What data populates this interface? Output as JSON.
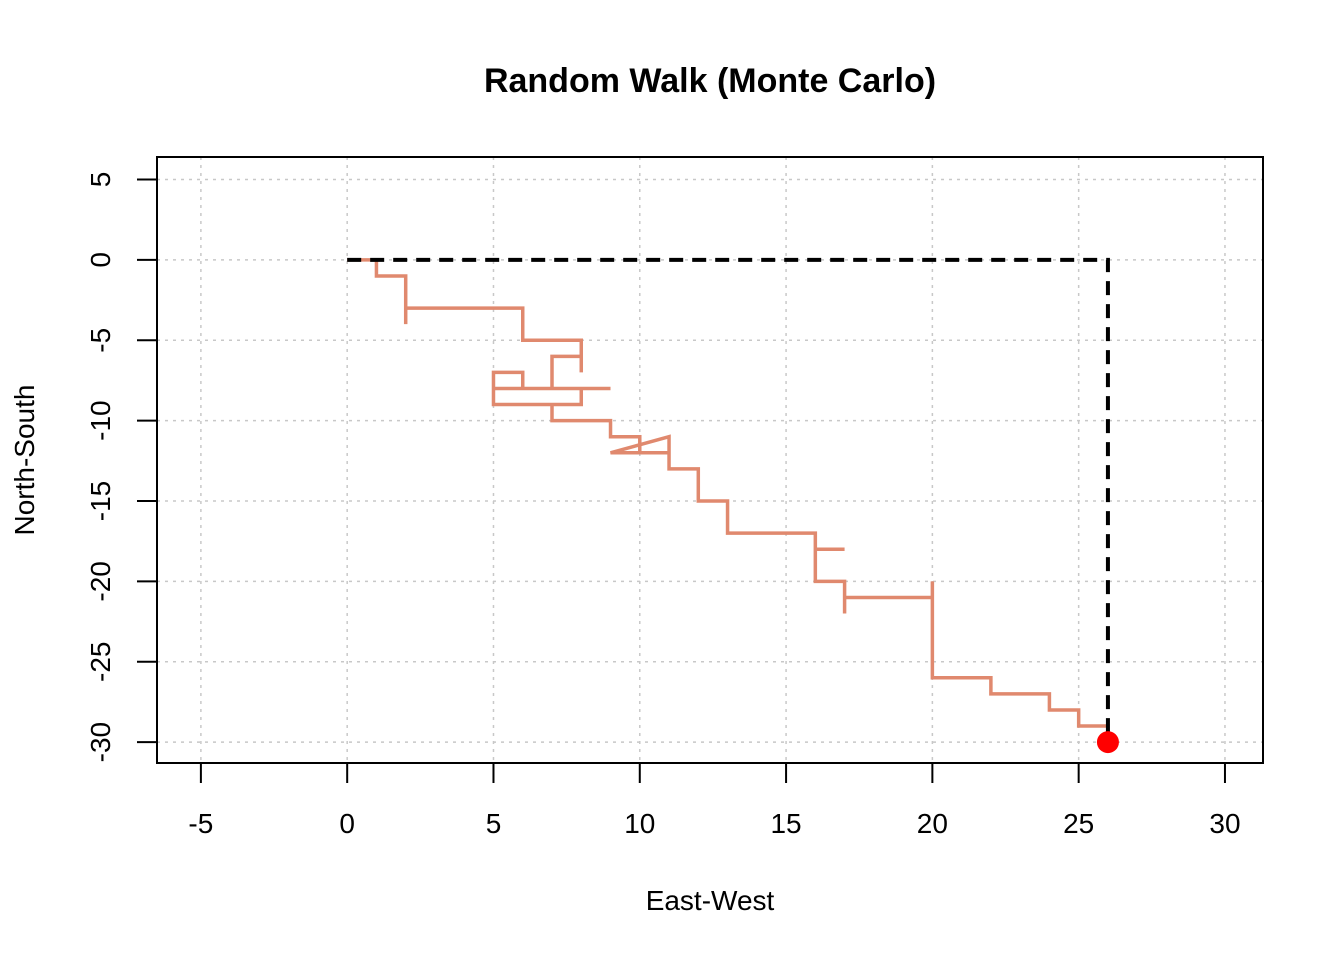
{
  "chart_data": {
    "type": "line",
    "title": "Random Walk (Monte Carlo)",
    "xlabel": "East-West",
    "ylabel": "North-South",
    "xlim": [
      -6.5,
      31.3
    ],
    "ylim": [
      -31.3,
      6.4
    ],
    "x_ticks": [
      -5,
      0,
      5,
      10,
      15,
      20,
      25,
      30
    ],
    "y_ticks": [
      5,
      0,
      -5,
      -10,
      -15,
      -20,
      -25,
      -30
    ],
    "x_tick_labels": [
      "-5",
      "0",
      "5",
      "10",
      "15",
      "20",
      "25",
      "30"
    ],
    "y_tick_labels": [
      "5",
      "0",
      "-5",
      "-10",
      "-15",
      "-20",
      "-25",
      "-30"
    ],
    "grid": true,
    "series": [
      {
        "style": "solid",
        "color": "#e0896e",
        "x": [
          0,
          1,
          1,
          2,
          2,
          2,
          6,
          6,
          8,
          8,
          8,
          7,
          7,
          9,
          7,
          6,
          6,
          5,
          5,
          8,
          8,
          9,
          8,
          5,
          5,
          7,
          7,
          9,
          9,
          10,
          10,
          11,
          11,
          9,
          11,
          11,
          12,
          12,
          13,
          13,
          16,
          16,
          17,
          16,
          16,
          17,
          17,
          17,
          20,
          20,
          20,
          22,
          22,
          24,
          24,
          25,
          25,
          26,
          26
        ],
        "y": [
          0,
          0,
          -1,
          -1,
          -4,
          -3,
          -3,
          -5,
          -5,
          -7,
          -6,
          -6,
          -8,
          -8,
          -8,
          -8,
          -7,
          -7,
          -9,
          -9,
          -8,
          -8,
          -8,
          -8,
          -9,
          -9,
          -10,
          -10,
          -11,
          -11,
          -12,
          -12,
          -11,
          -12,
          -12,
          -13,
          -13,
          -15,
          -15,
          -17,
          -17,
          -18,
          -18,
          -18,
          -20,
          -20,
          -22,
          -21,
          -21,
          -20,
          -26,
          -26,
          -27,
          -27,
          -28,
          -28,
          -29,
          -29,
          -30
        ]
      },
      {
        "style": "dashed",
        "color": "#000000",
        "x": [
          0,
          26,
          26
        ],
        "y": [
          0,
          0,
          -30
        ]
      }
    ],
    "endpoint": {
      "x": 26,
      "y": -30,
      "color": "#ff0000"
    }
  }
}
